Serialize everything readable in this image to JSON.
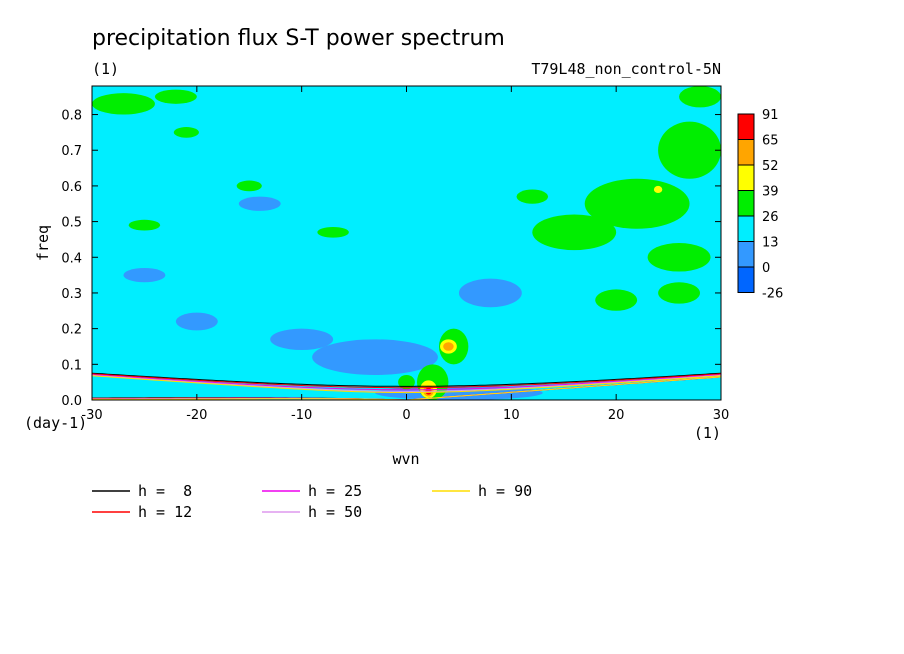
{
  "chart_data": {
    "type": "heatmap",
    "title": "precipitation flux S-T power spectrum",
    "subtitle_left": "(1)",
    "subtitle_right": "T79L48_non_control-5N",
    "xlabel": "wvn",
    "ylabel": "freq",
    "x_unit": "(1)",
    "y_unit": "(day-1)",
    "xlim": [
      -30,
      30
    ],
    "ylim": [
      0,
      0.88
    ],
    "x_ticks": [
      -30,
      -20,
      -10,
      0,
      10,
      20,
      30
    ],
    "x_tick_labels": [
      "-30",
      "-20",
      "-10",
      "0",
      "10",
      "20",
      "30"
    ],
    "y_ticks": [
      0.0,
      0.1,
      0.2,
      0.3,
      0.4,
      0.5,
      0.6,
      0.7,
      0.8
    ],
    "y_tick_labels": [
      "0.0",
      "0.1",
      "0.2",
      "0.3",
      "0.4",
      "0.5",
      "0.6",
      "0.7",
      "0.8"
    ],
    "background_level_color": "#00eeff",
    "colorbar": {
      "levels": [
        "91",
        "65",
        "52",
        "39",
        "26",
        "13",
        "0",
        "-26"
      ],
      "colors": [
        "#ff0000",
        "#ffa500",
        "#ffff00",
        "#00ee00",
        "#00eeff",
        "#3399ff",
        "#0066ff"
      ]
    },
    "contour_regions": [
      {
        "level_color": "#3399ff",
        "cx": -3,
        "cy": 0.12,
        "rx": 6,
        "ry": 0.05
      },
      {
        "level_color": "#3399ff",
        "cx": -10,
        "cy": 0.17,
        "rx": 3,
        "ry": 0.03
      },
      {
        "level_color": "#3399ff",
        "cx": -20,
        "cy": 0.22,
        "rx": 2,
        "ry": 0.025
      },
      {
        "level_color": "#3399ff",
        "cx": -25,
        "cy": 0.35,
        "rx": 2,
        "ry": 0.02
      },
      {
        "level_color": "#3399ff",
        "cx": 8,
        "cy": 0.3,
        "rx": 3,
        "ry": 0.04
      },
      {
        "level_color": "#3399ff",
        "cx": -14,
        "cy": 0.55,
        "rx": 2,
        "ry": 0.02
      },
      {
        "level_color": "#3399ff",
        "cx": 5,
        "cy": 0.02,
        "rx": 8,
        "ry": 0.02
      },
      {
        "level_color": "#00ee00",
        "cx": -27,
        "cy": 0.83,
        "rx": 3,
        "ry": 0.03
      },
      {
        "level_color": "#00ee00",
        "cx": -22,
        "cy": 0.85,
        "rx": 2,
        "ry": 0.02
      },
      {
        "level_color": "#00ee00",
        "cx": -25,
        "cy": 0.49,
        "rx": 1.5,
        "ry": 0.015
      },
      {
        "level_color": "#00ee00",
        "cx": -15,
        "cy": 0.6,
        "rx": 1.2,
        "ry": 0.015
      },
      {
        "level_color": "#00ee00",
        "cx": -7,
        "cy": 0.47,
        "rx": 1.5,
        "ry": 0.015
      },
      {
        "level_color": "#00ee00",
        "cx": -21,
        "cy": 0.75,
        "rx": 1.2,
        "ry": 0.015
      },
      {
        "level_color": "#00ee00",
        "cx": 16,
        "cy": 0.47,
        "rx": 4,
        "ry": 0.05
      },
      {
        "level_color": "#00ee00",
        "cx": 22,
        "cy": 0.55,
        "rx": 5,
        "ry": 0.07
      },
      {
        "level_color": "#00ee00",
        "cx": 27,
        "cy": 0.7,
        "rx": 3,
        "ry": 0.08
      },
      {
        "level_color": "#00ee00",
        "cx": 26,
        "cy": 0.4,
        "rx": 3,
        "ry": 0.04
      },
      {
        "level_color": "#00ee00",
        "cx": 20,
        "cy": 0.28,
        "rx": 2,
        "ry": 0.03
      },
      {
        "level_color": "#00ee00",
        "cx": 26,
        "cy": 0.3,
        "rx": 2,
        "ry": 0.03
      },
      {
        "level_color": "#00ee00",
        "cx": 12,
        "cy": 0.57,
        "rx": 1.5,
        "ry": 0.02
      },
      {
        "level_color": "#00ee00",
        "cx": 28,
        "cy": 0.85,
        "rx": 2,
        "ry": 0.03
      },
      {
        "level_color": "#00ee00",
        "cx": 4.5,
        "cy": 0.15,
        "rx": 1.4,
        "ry": 0.05
      },
      {
        "level_color": "#00ee00",
        "cx": 2.5,
        "cy": 0.05,
        "rx": 1.5,
        "ry": 0.05
      },
      {
        "level_color": "#00ee00",
        "cx": 0,
        "cy": 0.05,
        "rx": 0.8,
        "ry": 0.02
      },
      {
        "level_color": "#ffff00",
        "cx": 4.0,
        "cy": 0.15,
        "rx": 0.8,
        "ry": 0.02
      },
      {
        "level_color": "#ffff00",
        "cx": 2.1,
        "cy": 0.03,
        "rx": 0.8,
        "ry": 0.025
      },
      {
        "level_color": "#ffff00",
        "cx": 24,
        "cy": 0.59,
        "rx": 0.4,
        "ry": 0.01
      },
      {
        "level_color": "#ffa500",
        "cx": 4.0,
        "cy": 0.15,
        "rx": 0.5,
        "ry": 0.012
      },
      {
        "level_color": "#ffa500",
        "cx": 2.1,
        "cy": 0.025,
        "rx": 0.5,
        "ry": 0.015
      },
      {
        "level_color": "#ff0000",
        "cx": 2.1,
        "cy": 0.025,
        "rx": 0.3,
        "ry": 0.01
      }
    ],
    "series": [
      {
        "name": "h =  8",
        "color": "#000000",
        "equivalent_depth_m": 8
      },
      {
        "name": "h = 12",
        "color": "#ff0000",
        "equivalent_depth_m": 12
      },
      {
        "name": "h = 25",
        "color": "#ee00ee",
        "equivalent_depth_m": 25
      },
      {
        "name": "h = 50",
        "color": "#dd99ee",
        "equivalent_depth_m": 50
      },
      {
        "name": "h = 90",
        "color": "#ffdd00",
        "equivalent_depth_m": 90
      }
    ],
    "legend_placement": "below"
  }
}
